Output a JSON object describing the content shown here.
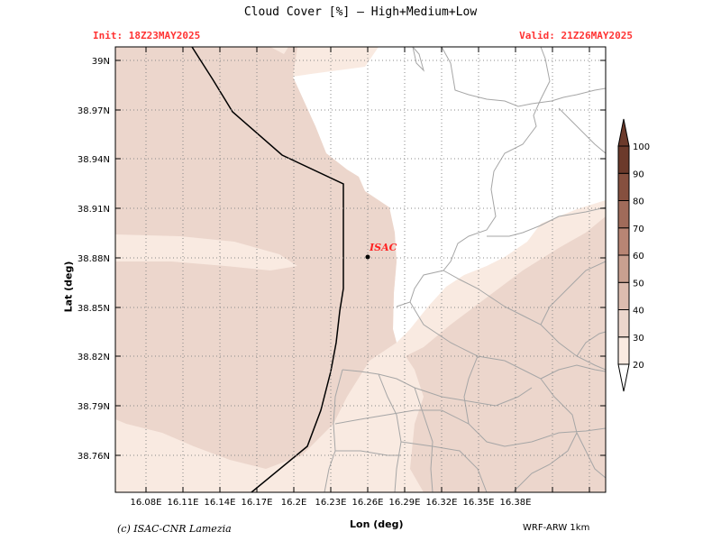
{
  "header": {
    "title": "Cloud Cover [%] — High+Medium+Low",
    "init": "Init: 18Z23MAY2025",
    "valid": "Valid: 21Z26MAY2025"
  },
  "axes": {
    "xlabel": "Lon (deg)",
    "ylabel": "Lat (deg)",
    "x_ticks": [
      "16.08E",
      "16.11E",
      "16.14E",
      "16.17E",
      "16.2E",
      "16.23E",
      "16.26E",
      "16.29E",
      "16.32E",
      "16.35E",
      "16.38E"
    ],
    "y_ticks": [
      "39N",
      "38.97N",
      "38.94N",
      "38.91N",
      "38.88N",
      "38.85N",
      "38.82N",
      "38.79N",
      "38.76N"
    ]
  },
  "station": {
    "label": "ISAC"
  },
  "colorbar": {
    "levels": [
      "20",
      "30",
      "40",
      "50",
      "60",
      "70",
      "80",
      "90",
      "100"
    ],
    "colors": [
      "#ffffff",
      "#f9eae1",
      "#ecd6cc",
      "#dcbcaf",
      "#c9a090",
      "#b88574",
      "#a06b5a",
      "#86503f",
      "#6c3a2b"
    ]
  },
  "map_colors": {
    "level_30_40": "#f9eae1",
    "level_40_50": "#ecd6cc",
    "coast": "#000000",
    "border": "#a6a6a6"
  },
  "footer": {
    "credit": "(c) ISAC-CNR Lamezia",
    "model": "WRF-ARW 1km"
  }
}
